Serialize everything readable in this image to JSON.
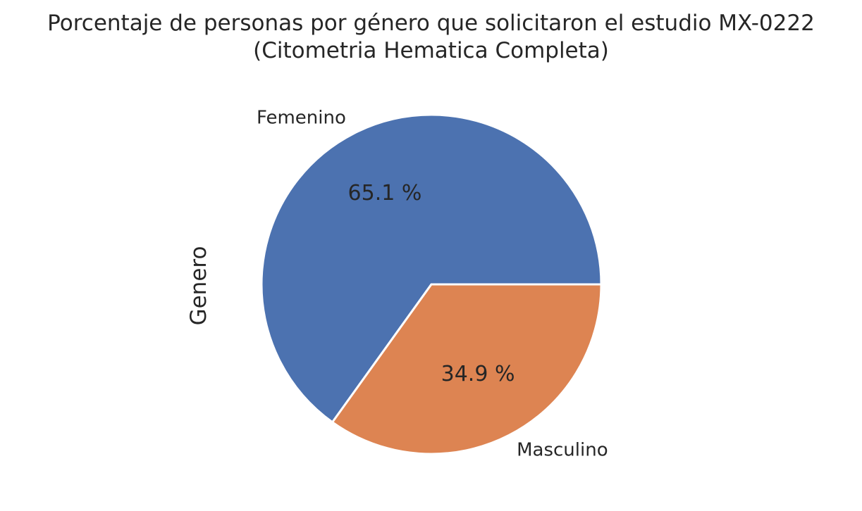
{
  "chart_data": {
    "type": "pie",
    "title": "Porcentaje de personas por género que solicitaron el estudio MX-0222",
    "subtitle": "(Citometria Hematica Completa)",
    "ylabel": "Genero",
    "categories": [
      "Femenino",
      "Masculino"
    ],
    "values": [
      65.1,
      34.9
    ],
    "value_labels": [
      "65.1 %",
      "34.9 %"
    ],
    "colors": [
      "#4c72b0",
      "#dd8452"
    ],
    "start_angle": 0,
    "direction": "counterclockwise"
  }
}
